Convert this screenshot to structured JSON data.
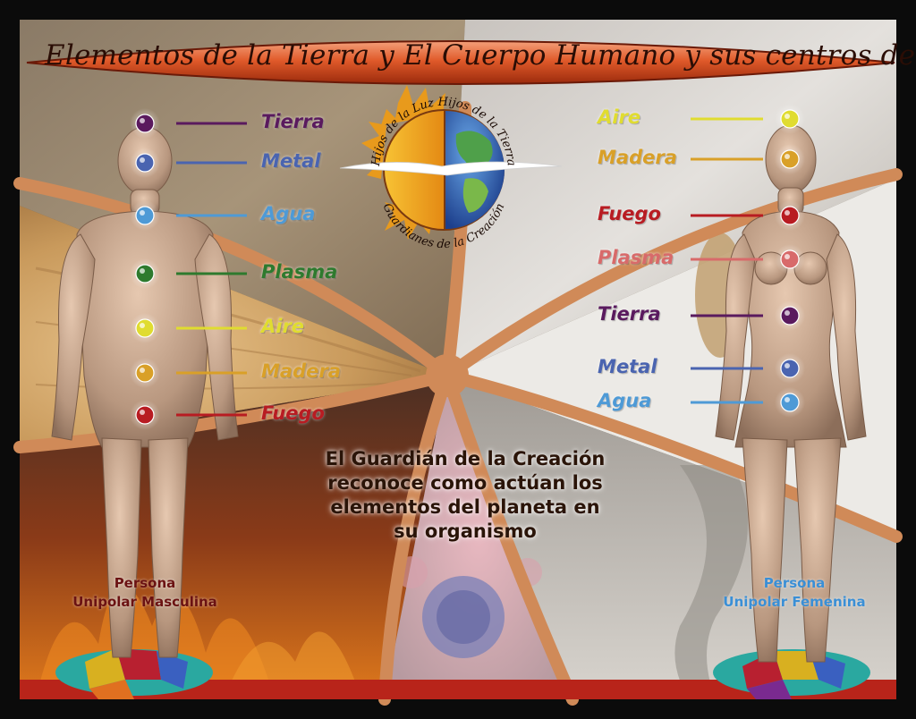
{
  "title": "Elementos de la Tierra y El Cuerpo Humano y sus centros de Energía",
  "logo": {
    "arc_top": "Hijos de la Luz  Hijos de la Tierra",
    "arc_bottom": "Guardianes de la Creación",
    "icons": [
      "sun-icon",
      "earth-globe-icon",
      "bird-wings-icon"
    ]
  },
  "left_figure": {
    "label_line1": "Persona",
    "label_line2": "Unipolar Masculina",
    "label_color": "#6b1212",
    "centers": [
      {
        "name": "Tierra",
        "color": "#5a1a5e"
      },
      {
        "name": "Metal",
        "color": "#4a64b0"
      },
      {
        "name": "Agua",
        "color": "#4e9ad6"
      },
      {
        "name": "Plasma",
        "color": "#2e7a2e"
      },
      {
        "name": "Aire",
        "color": "#e0dc30"
      },
      {
        "name": "Madera",
        "color": "#d9a028"
      },
      {
        "name": "Fuego",
        "color": "#b81c22"
      }
    ]
  },
  "right_figure": {
    "label_line1": "Persona",
    "label_line2": "Unipolar Femenina",
    "label_color": "#3a8fd6",
    "centers": [
      {
        "name": "Aire",
        "color": "#e0dc30"
      },
      {
        "name": "Madera",
        "color": "#d9a028"
      },
      {
        "name": "Fuego",
        "color": "#b81c22"
      },
      {
        "name": "Plasma",
        "color": "#d86a6a"
      },
      {
        "name": "Tierra",
        "color": "#5a1a5e"
      },
      {
        "name": "Metal",
        "color": "#4a64b0"
      },
      {
        "name": "Agua",
        "color": "#4e9ad6"
      }
    ]
  },
  "center_text": [
    "El Guardián de la Creación",
    "reconoce como actúan los",
    "elementos del  planeta en",
    "su organismo"
  ]
}
